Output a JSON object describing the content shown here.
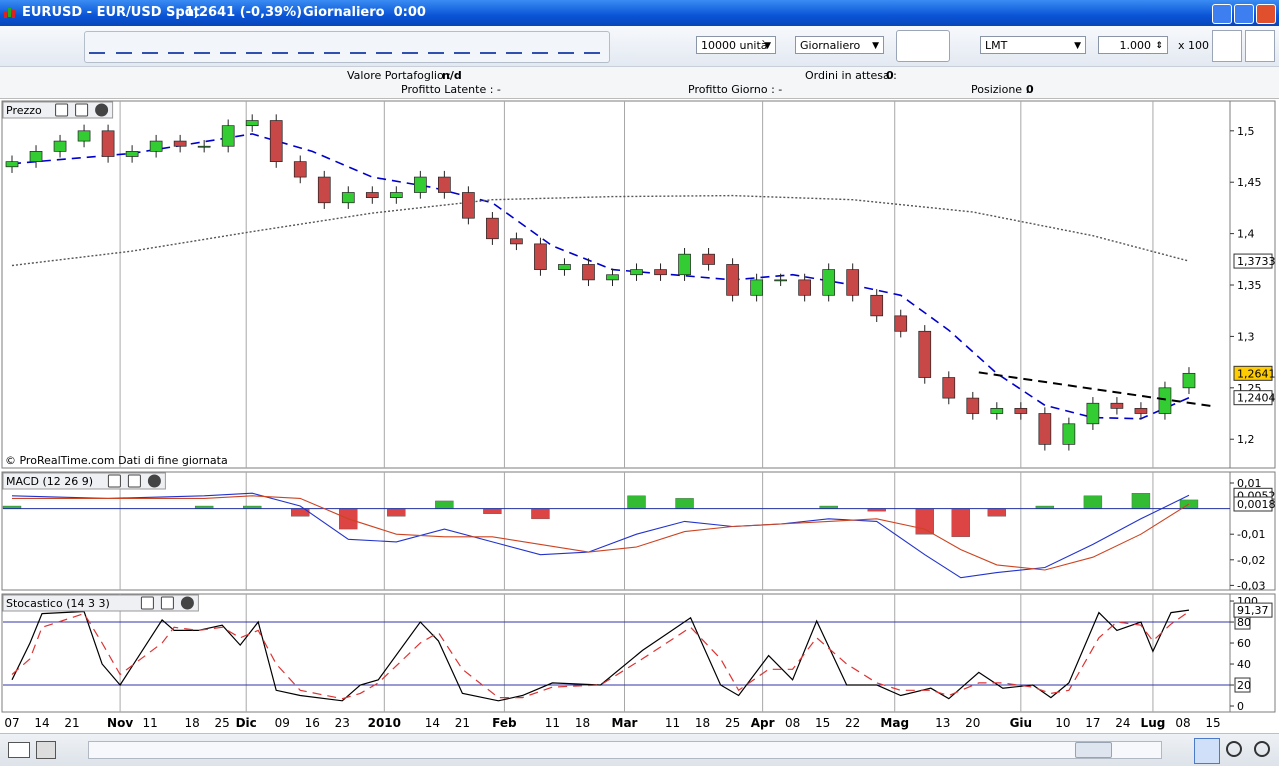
{
  "window": {
    "title": "EURUSD - EUR/USD Spot",
    "quote": "1,2641 (-0,39%)",
    "period": "Giornaliero  0:00"
  },
  "toolbar": {
    "quantity": "10000 unità",
    "timeframe": "Giornaliero",
    "order_type": "LMT",
    "amount": "1.000",
    "multiplier": "x 100"
  },
  "account": {
    "portfolio_label": "Valore Portafoglio :",
    "portfolio_value": "n/d",
    "pending_label": "Ordini in attesa :",
    "pending_value": "0",
    "latent_profit": "Profitto Latente : -",
    "day_profit": "Profitto Giorno : -",
    "position_label": "Posizione :",
    "position_value": "0"
  },
  "chart_data": [
    {
      "type": "candlestick",
      "title": "Prezzo",
      "note": "© ProRealTime.com  Dati di fine giornata",
      "up_color": "#33cc33",
      "down_color": "#c84848",
      "x": [
        0,
        4,
        8,
        12,
        16,
        20,
        24,
        28,
        32,
        36,
        40,
        44,
        48,
        52,
        56,
        60,
        64,
        68,
        72,
        76,
        80,
        84,
        88,
        92,
        96,
        100,
        104,
        108,
        112,
        116,
        120,
        124,
        128,
        132,
        136,
        140,
        144,
        148,
        152,
        156,
        160,
        164,
        168,
        172,
        176,
        180,
        184,
        188,
        192,
        196
      ],
      "open": [
        1.465,
        1.47,
        1.48,
        1.49,
        1.5,
        1.475,
        1.48,
        1.49,
        1.485,
        1.485,
        1.505,
        1.51,
        1.47,
        1.455,
        1.43,
        1.44,
        1.435,
        1.44,
        1.455,
        1.44,
        1.415,
        1.395,
        1.39,
        1.365,
        1.37,
        1.355,
        1.36,
        1.365,
        1.36,
        1.38,
        1.37,
        1.34,
        1.355,
        1.355,
        1.34,
        1.365,
        1.34,
        1.32,
        1.305,
        1.26,
        1.24,
        1.225,
        1.23,
        1.225,
        1.195,
        1.215,
        1.235,
        1.23,
        1.225,
        1.25
      ],
      "high": [
        1.476,
        1.486,
        1.496,
        1.506,
        1.506,
        1.486,
        1.496,
        1.496,
        1.491,
        1.511,
        1.516,
        1.516,
        1.476,
        1.461,
        1.446,
        1.446,
        1.446,
        1.461,
        1.461,
        1.446,
        1.421,
        1.401,
        1.396,
        1.376,
        1.376,
        1.366,
        1.371,
        1.371,
        1.386,
        1.386,
        1.376,
        1.361,
        1.361,
        1.361,
        1.371,
        1.371,
        1.346,
        1.326,
        1.311,
        1.266,
        1.246,
        1.236,
        1.236,
        1.231,
        1.221,
        1.241,
        1.241,
        1.236,
        1.256,
        1.2701
      ],
      "low": [
        1.459,
        1.464,
        1.474,
        1.484,
        1.469,
        1.469,
        1.474,
        1.479,
        1.479,
        1.479,
        1.499,
        1.464,
        1.449,
        1.424,
        1.424,
        1.429,
        1.429,
        1.434,
        1.434,
        1.409,
        1.389,
        1.384,
        1.359,
        1.359,
        1.349,
        1.349,
        1.354,
        1.354,
        1.354,
        1.364,
        1.334,
        1.334,
        1.349,
        1.334,
        1.334,
        1.334,
        1.314,
        1.299,
        1.254,
        1.234,
        1.219,
        1.219,
        1.219,
        1.189,
        1.189,
        1.209,
        1.224,
        1.219,
        1.219,
        1.244
      ],
      "close": [
        1.47,
        1.48,
        1.49,
        1.5,
        1.475,
        1.48,
        1.49,
        1.485,
        1.485,
        1.505,
        1.51,
        1.47,
        1.455,
        1.43,
        1.44,
        1.435,
        1.44,
        1.455,
        1.44,
        1.415,
        1.395,
        1.39,
        1.365,
        1.37,
        1.355,
        1.36,
        1.365,
        1.36,
        1.38,
        1.37,
        1.34,
        1.355,
        1.355,
        1.34,
        1.365,
        1.34,
        1.32,
        1.305,
        1.26,
        1.24,
        1.225,
        1.23,
        1.225,
        1.195,
        1.215,
        1.235,
        1.23,
        1.225,
        1.25,
        1.2641
      ],
      "last_close_label": "1,2641",
      "overlays": [
        {
          "color": "#0000cc",
          "style": "dashed",
          "x": [
            0,
            20,
            40,
            50,
            60,
            70,
            80,
            90,
            100,
            110,
            120,
            130,
            140,
            148,
            156,
            164,
            172,
            180,
            188,
            196
          ],
          "values": [
            1.468,
            1.478,
            1.497,
            1.48,
            1.455,
            1.445,
            1.43,
            1.388,
            1.365,
            1.36,
            1.355,
            1.36,
            1.35,
            1.34,
            1.306,
            1.264,
            1.233,
            1.221,
            1.22,
            1.2404
          ],
          "last_label": "1,2404"
        },
        {
          "color": "#555555",
          "style": "dotted",
          "x": [
            0,
            20,
            40,
            60,
            80,
            100,
            120,
            140,
            160,
            180,
            196
          ],
          "values": [
            1.369,
            1.383,
            1.402,
            1.42,
            1.433,
            1.436,
            1.437,
            1.433,
            1.421,
            1.398,
            1.3733
          ],
          "last_label": "1,3733"
        }
      ],
      "trendline": {
        "color": "#000000",
        "x": [
          161,
          200
        ],
        "values": [
          1.265,
          1.232
        ]
      },
      "xlim": [
        -1.5,
        202.5
      ],
      "ylim": [
        1.172,
        1.529
      ],
      "yticks": [
        {
          "value": 1.5,
          "label": "1,5"
        },
        {
          "value": 1.45,
          "label": "1,45"
        },
        {
          "value": 1.4,
          "label": "1,4"
        },
        {
          "value": 1.35,
          "label": "1,35"
        },
        {
          "value": 1.3,
          "label": "1,3"
        },
        {
          "value": 1.25,
          "label": "1,25"
        },
        {
          "value": 1.2,
          "label": "1,2"
        }
      ]
    },
    {
      "type": "macd",
      "title": "MACD (12 26 9)",
      "x": [
        0,
        16,
        32,
        40,
        48,
        56,
        64,
        72,
        80,
        88,
        96,
        104,
        112,
        120,
        128,
        136,
        144,
        152,
        158,
        164,
        172,
        180,
        188,
        196
      ],
      "histogram": {
        "up_color": "#33bb33",
        "down_color": "#dd4444",
        "values": [
          0.001,
          0,
          0.001,
          0.001,
          -0.003,
          -0.008,
          -0.003,
          0.003,
          -0.002,
          -0.004,
          0,
          0.005,
          0.004,
          0,
          0,
          0.001,
          -0.001,
          -0.01,
          -0.011,
          -0.003,
          0.001,
          0.005,
          0.006,
          0.0034
        ]
      },
      "lines": [
        {
          "color": "#2233cc",
          "values": [
            0.005,
            0.004,
            0.005,
            0.006,
            0.001,
            -0.012,
            -0.013,
            -0.008,
            -0.013,
            -0.018,
            -0.017,
            -0.01,
            -0.005,
            -0.007,
            -0.006,
            -0.004,
            -0.005,
            -0.018,
            -0.027,
            -0.025,
            -0.023,
            -0.014,
            -0.004,
            0.0052
          ],
          "last_label": "0,0052"
        },
        {
          "color": "#cc4422",
          "values": [
            0.004,
            0.004,
            0.004,
            0.005,
            0.004,
            -0.004,
            -0.01,
            -0.011,
            -0.011,
            -0.014,
            -0.017,
            -0.015,
            -0.009,
            -0.007,
            -0.006,
            -0.005,
            -0.004,
            -0.008,
            -0.016,
            -0.022,
            -0.024,
            -0.019,
            -0.01,
            0.0018
          ],
          "last_label": "0,0018"
        }
      ],
      "xlim": [
        -1.5,
        202.5
      ],
      "ylim": [
        -0.0318,
        0.0143
      ],
      "yticks": [
        {
          "value": 0.01,
          "label": "0,01"
        },
        {
          "value": -0.01,
          "label": "-0,01"
        },
        {
          "value": -0.02,
          "label": "-0,02"
        },
        {
          "value": -0.03,
          "label": "-0,03"
        }
      ]
    },
    {
      "type": "stochastic",
      "title": "Stocastico (14 3 3)",
      "x": [
        0,
        3,
        5,
        12,
        15,
        18,
        25,
        27,
        31,
        35,
        38,
        41,
        44,
        48,
        55,
        58,
        61,
        68,
        71,
        75,
        81,
        85,
        90,
        98,
        105,
        113,
        118,
        121,
        126,
        130,
        134,
        139,
        144,
        148,
        153,
        156,
        161,
        165,
        170,
        173,
        176,
        181,
        184,
        188,
        190,
        193,
        196
      ],
      "lines": [
        {
          "color": "#000000",
          "style": "solid",
          "values": [
            25,
            60,
            88,
            90,
            40,
            20,
            82,
            72,
            72,
            77,
            58,
            80,
            15,
            10,
            5,
            20,
            25,
            80,
            62,
            12,
            5,
            10,
            22,
            20,
            53,
            84,
            20,
            10,
            48,
            25,
            81,
            20,
            20,
            10,
            17,
            7,
            32,
            17,
            20,
            8,
            22,
            89,
            72,
            80,
            52,
            89,
            91.37
          ],
          "last_label": "91,37"
        },
        {
          "color": "#dd3333",
          "style": "dashed",
          "values": [
            30,
            45,
            75,
            88,
            60,
            30,
            60,
            75,
            72,
            75,
            65,
            72,
            40,
            15,
            7,
            12,
            22,
            60,
            70,
            35,
            8,
            8,
            18,
            20,
            45,
            75,
            45,
            15,
            35,
            35,
            65,
            40,
            22,
            15,
            15,
            10,
            22,
            22,
            18,
            12,
            15,
            65,
            80,
            77,
            62,
            78,
            90
          ]
        }
      ],
      "levels": [
        80,
        20
      ],
      "level_color": "#3333aa",
      "xlim": [
        -1.5,
        202.5
      ],
      "ylim": [
        -5.7,
        106.7
      ],
      "yticks": [
        100,
        80,
        60,
        40,
        20,
        0
      ],
      "xticks": [
        {
          "value": 0,
          "label": "07"
        },
        {
          "value": 5,
          "label": "14"
        },
        {
          "value": 10,
          "label": "21"
        },
        {
          "value": 18,
          "label": "Nov"
        },
        {
          "value": 23,
          "label": "11"
        },
        {
          "value": 30,
          "label": "18"
        },
        {
          "value": 35,
          "label": "25"
        },
        {
          "value": 39,
          "label": "Dic"
        },
        {
          "value": 45,
          "label": "09"
        },
        {
          "value": 50,
          "label": "16"
        },
        {
          "value": 55,
          "label": "23"
        },
        {
          "value": 62,
          "label": "2010"
        },
        {
          "value": 70,
          "label": "14"
        },
        {
          "value": 75,
          "label": "21"
        },
        {
          "value": 82,
          "label": "Feb"
        },
        {
          "value": 90,
          "label": "11"
        },
        {
          "value": 95,
          "label": "18"
        },
        {
          "value": 102,
          "label": "Mar"
        },
        {
          "value": 110,
          "label": "11"
        },
        {
          "value": 115,
          "label": "18"
        },
        {
          "value": 120,
          "label": "25"
        },
        {
          "value": 125,
          "label": "Apr"
        },
        {
          "value": 130,
          "label": "08"
        },
        {
          "value": 135,
          "label": "15"
        },
        {
          "value": 140,
          "label": "22"
        },
        {
          "value": 147,
          "label": "Mag"
        },
        {
          "value": 155,
          "label": "13"
        },
        {
          "value": 160,
          "label": "20"
        },
        {
          "value": 168,
          "label": "Giu"
        },
        {
          "value": 175,
          "label": "10"
        },
        {
          "value": 180,
          "label": "17"
        },
        {
          "value": 185,
          "label": "24"
        },
        {
          "value": 190,
          "label": "Lug"
        },
        {
          "value": 195,
          "label": "08"
        },
        {
          "value": 200,
          "label": "15"
        }
      ]
    }
  ]
}
